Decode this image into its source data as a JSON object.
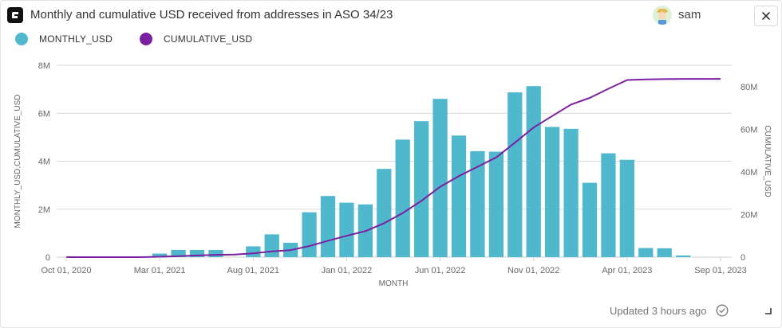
{
  "header": {
    "title": "Monthly and cumulative USD received from addresses in ASO 34/23",
    "logo_icon": "app-logo-icon",
    "user": {
      "name": "sam",
      "avatar_icon": "avatar-icon"
    },
    "close_icon": "close-icon"
  },
  "legend": {
    "items": [
      {
        "label": "MONTHLY_USD",
        "color": "#4fb8cc"
      },
      {
        "label": "CUMULATIVE_USD",
        "color": "#7b1fa2"
      }
    ]
  },
  "footer": {
    "updated_text": "Updated 3 hours ago",
    "status_icon": "check-circle-icon",
    "resize_icon": "resize-corner-icon"
  },
  "chart_data": {
    "type": "bar",
    "xlabel": "MONTH",
    "ylabel": "MONTHLY_USD,CUMULATIVE_USD",
    "y2label": "CUMULATIVE_USD",
    "ylim": [
      0,
      8000000
    ],
    "y2lim": [
      0,
      90000000
    ],
    "yticks": [
      0,
      2000000,
      4000000,
      6000000,
      8000000
    ],
    "ytick_labels": [
      "0",
      "2M",
      "4M",
      "6M",
      "8M"
    ],
    "y2ticks": [
      0,
      20000000,
      40000000,
      60000000,
      80000000
    ],
    "y2tick_labels": [
      "0",
      "20M",
      "40M",
      "60M",
      "80M"
    ],
    "grid": true,
    "xtick_labels": [
      {
        "index": 0,
        "label": "Oct 01, 2020"
      },
      {
        "index": 5,
        "label": "Mar 01, 2021"
      },
      {
        "index": 10,
        "label": "Aug 01, 2021"
      },
      {
        "index": 15,
        "label": "Jan 01, 2022"
      },
      {
        "index": 20,
        "label": "Jun 01, 2022"
      },
      {
        "index": 25,
        "label": "Nov 01, 2022"
      },
      {
        "index": 30,
        "label": "Apr 01, 2023"
      },
      {
        "index": 35,
        "label": "Sep 01, 2023"
      }
    ],
    "categories": [
      "Oct 2020",
      "Nov 2020",
      "Dec 2020",
      "Jan 2021",
      "Feb 2021",
      "Mar 2021",
      "Apr 2021",
      "May 2021",
      "Jun 2021",
      "Jul 2021",
      "Aug 2021",
      "Sep 2021",
      "Oct 2021",
      "Nov 2021",
      "Dec 2021",
      "Jan 2022",
      "Feb 2022",
      "Mar 2022",
      "Apr 2022",
      "May 2022",
      "Jun 2022",
      "Jul 2022",
      "Aug 2022",
      "Sep 2022",
      "Oct 2022",
      "Nov 2022",
      "Dec 2022",
      "Jan 2023",
      "Feb 2023",
      "Mar 2023",
      "Apr 2023",
      "May 2023",
      "Jun 2023",
      "Jul 2023",
      "Aug 2023",
      "Sep 2023"
    ],
    "series": [
      {
        "name": "MONTHLY_USD",
        "type": "bar",
        "axis": "left",
        "values": [
          0,
          0,
          0,
          0,
          0,
          150000,
          300000,
          300000,
          300000,
          0,
          450000,
          950000,
          600000,
          1870000,
          2550000,
          2270000,
          2200000,
          3680000,
          4900000,
          5670000,
          6600000,
          5070000,
          4420000,
          4400000,
          6870000,
          7130000,
          5430000,
          5350000,
          3100000,
          4330000,
          4060000,
          380000,
          370000,
          70000,
          0,
          0
        ]
      },
      {
        "name": "CUMULATIVE_USD",
        "type": "line",
        "axis": "right",
        "values": [
          0,
          0,
          0,
          0,
          0,
          200000,
          500000,
          800000,
          1100000,
          1200000,
          1800000,
          2700000,
          3300000,
          5200000,
          7700000,
          10000000,
          12200000,
          15900000,
          20700000,
          26400000,
          33000000,
          38000000,
          42400000,
          46800000,
          53700000,
          60800000,
          66200000,
          71600000,
          74700000,
          79000000,
          83100000,
          83400000,
          83500000,
          83600000,
          83600000,
          83600000
        ]
      }
    ]
  }
}
